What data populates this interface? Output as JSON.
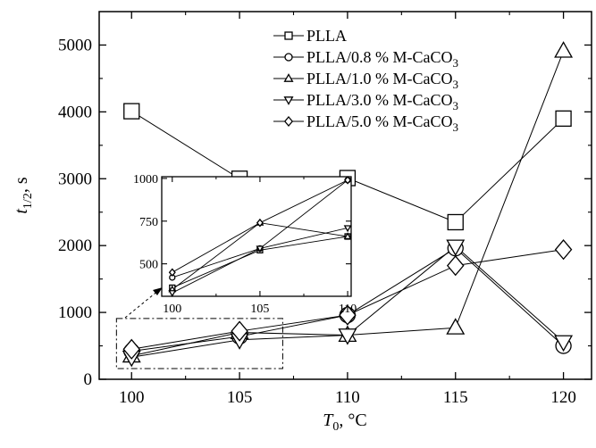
{
  "chart_data": {
    "type": "line",
    "xlabel": {
      "main": "T",
      "sub": "0",
      "rest": ", °C"
    },
    "ylabel": {
      "main": "t",
      "sub": "1/2",
      "rest": ", s"
    },
    "xlim": [
      98.5,
      121.3
    ],
    "ylim": [
      0,
      5500
    ],
    "x_ticks": [
      "100",
      "105",
      "110",
      "115",
      "120"
    ],
    "y_ticks": [
      "0",
      "1000",
      "2000",
      "3000",
      "4000",
      "5000"
    ],
    "legend_position": "top-right",
    "series": [
      {
        "name": "PLLA",
        "marker": "square",
        "color": "#000000",
        "x": [
          100,
          105,
          110,
          115,
          120
        ],
        "y": [
          4010,
          3000,
          3010,
          2350,
          3900
        ]
      },
      {
        "name": "PLLA/0.8 % M-CaCO",
        "name_sub": "3",
        "marker": "circle",
        "color": "#000000",
        "x": [
          100,
          105,
          110,
          115,
          120
        ],
        "y": [
          420,
          640,
          960,
          1960,
          500
        ]
      },
      {
        "name": "PLLA/1.0 % M-CaCO",
        "name_sub": "3",
        "marker": "triangle-up",
        "color": "#000000",
        "x": [
          100,
          105,
          110,
          115,
          120
        ],
        "y": [
          350,
          700,
          660,
          770,
          4910
        ]
      },
      {
        "name": "PLLA/3.0 % M-CaCO",
        "name_sub": "3",
        "marker": "triangle-down",
        "color": "#000000",
        "x": [
          100,
          105,
          110,
          115,
          120
        ],
        "y": [
          330,
          590,
          660,
          1990,
          560
        ]
      },
      {
        "name": "PLLA/5.0 % M-CaCO",
        "name_sub": "3",
        "marker": "diamond",
        "color": "#000000",
        "x": [
          100,
          105,
          110,
          115,
          120
        ],
        "y": [
          450,
          720,
          960,
          1700,
          1940
        ]
      }
    ],
    "inset": {
      "type": "line",
      "xlim": [
        99.4,
        110.2
      ],
      "ylim": [
        310,
        1010
      ],
      "x_ticks": [
        "100",
        "105",
        "110"
      ],
      "y_ticks": [
        "500",
        "750",
        "1000"
      ],
      "series": [
        {
          "marker": "square",
          "x": [
            100,
            105,
            110
          ],
          "y": [
            360,
            580,
            660
          ]
        },
        {
          "marker": "circle",
          "x": [
            100,
            105,
            110
          ],
          "y": [
            420,
            590,
            990
          ]
        },
        {
          "marker": "triangle-up",
          "x": [
            100,
            105,
            110
          ],
          "y": [
            350,
            740,
            660
          ]
        },
        {
          "marker": "triangle-down",
          "x": [
            100,
            105,
            110
          ],
          "y": [
            330,
            590,
            710
          ]
        },
        {
          "marker": "diamond",
          "x": [
            100,
            105,
            110
          ],
          "y": [
            450,
            740,
            990
          ]
        }
      ]
    }
  }
}
